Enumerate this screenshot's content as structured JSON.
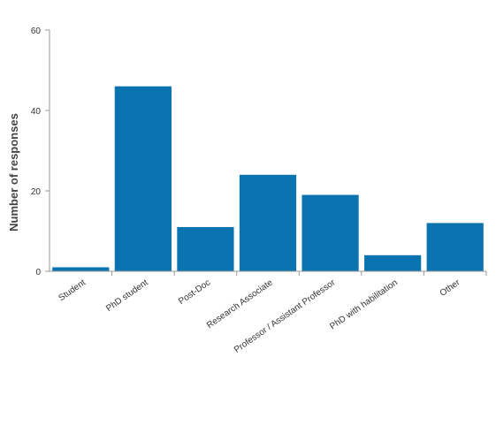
{
  "chart_data": {
    "type": "bar",
    "title": "",
    "xlabel": "",
    "ylabel": "Number of responses",
    "ylim": [
      0,
      60
    ],
    "yticks": [
      0,
      20,
      40,
      60
    ],
    "categories": [
      "Student",
      "PhD student",
      "Post-Doc",
      "Research Associate",
      "Professor / Assistant Professor",
      "PhD with habilitation",
      "Other"
    ],
    "values": [
      1,
      46,
      11,
      24,
      19,
      4,
      12
    ],
    "bar_color": "#0b74b0",
    "grid": false,
    "legend": "none"
  }
}
